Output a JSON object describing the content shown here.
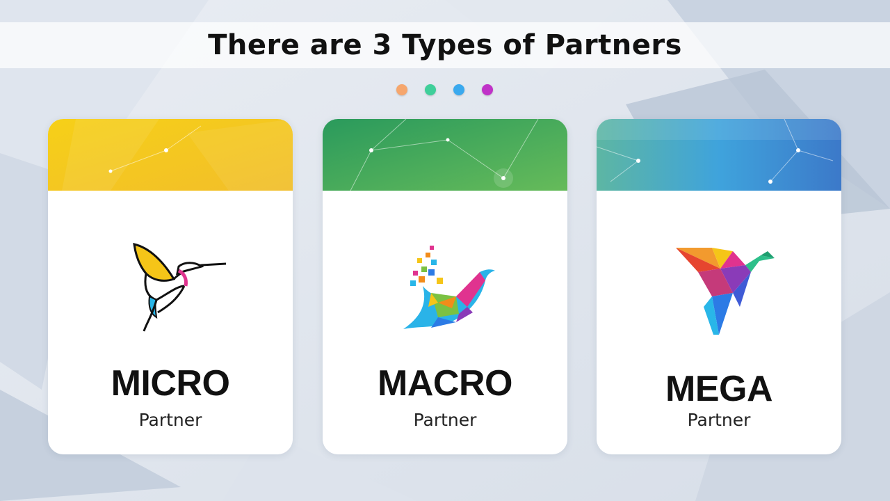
{
  "slide": {
    "title": "There are 3 Types of Partners",
    "dots": [
      {
        "color": "#f6a66d"
      },
      {
        "color": "#3fcf9a"
      },
      {
        "color": "#3aa9ee"
      },
      {
        "color": "#c032c8"
      }
    ]
  },
  "cards": [
    {
      "name": "MICRO",
      "sublabel": "Partner",
      "header_colors": [
        "#f5cc1a",
        "#f0c230"
      ],
      "logo_icon": "hummingbird-line-icon"
    },
    {
      "name": "MACRO",
      "sublabel": "Partner",
      "header_colors": [
        "#2c9b5e",
        "#5cb85a"
      ],
      "logo_icon": "pixel-bird-icon"
    },
    {
      "name": "MEGA",
      "sublabel": "Partner",
      "header_colors": [
        "#5bb5a8",
        "#3f8cd6"
      ],
      "logo_icon": "origami-bird-icon"
    }
  ]
}
